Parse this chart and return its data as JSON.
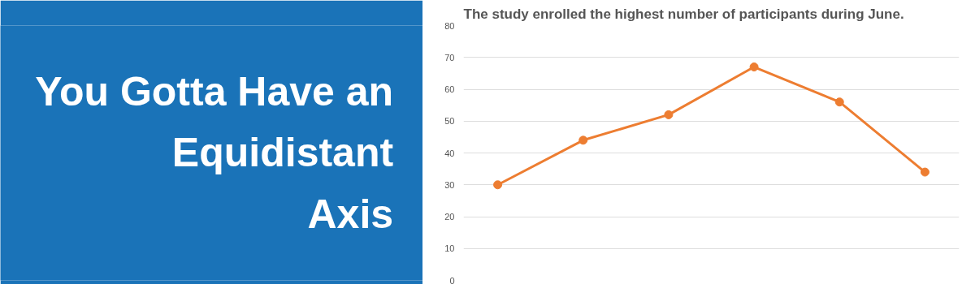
{
  "chart_data": {
    "type": "line",
    "title": "You Gotta Have an\nEquidistant\nAxis",
    "subtitle": "The study enrolled the highest number of participants during June.",
    "categories": [
      null,
      null,
      null,
      null,
      null,
      null
    ],
    "series": [
      {
        "color": "#ed7d31",
        "values": [
          30,
          44,
          52,
          67,
          56,
          34
        ]
      }
    ],
    "ylim": [
      0,
      80
    ],
    "yticks": [
      0,
      10,
      20,
      30,
      40,
      50,
      60,
      70,
      80
    ],
    "grid": "y",
    "marker": "circle",
    "tick_labels": "y"
  }
}
